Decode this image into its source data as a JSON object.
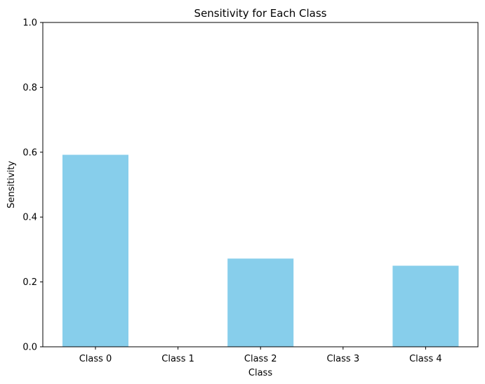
{
  "chart_data": {
    "type": "bar",
    "title": "Sensitivity for Each Class",
    "xlabel": "Class",
    "ylabel": "Sensitivity",
    "categories": [
      "Class 0",
      "Class 1",
      "Class 2",
      "Class 3",
      "Class 4"
    ],
    "values": [
      0.592,
      0.0,
      0.272,
      0.0,
      0.25
    ],
    "ylim": [
      0,
      1
    ],
    "yticks": [
      "0.0",
      "0.2",
      "0.4",
      "0.6",
      "0.8",
      "1.0"
    ],
    "grid": false,
    "legend": "none",
    "colors": {
      "bar": "#87ceeb",
      "axis": "#000000",
      "background": "#ffffff"
    }
  }
}
